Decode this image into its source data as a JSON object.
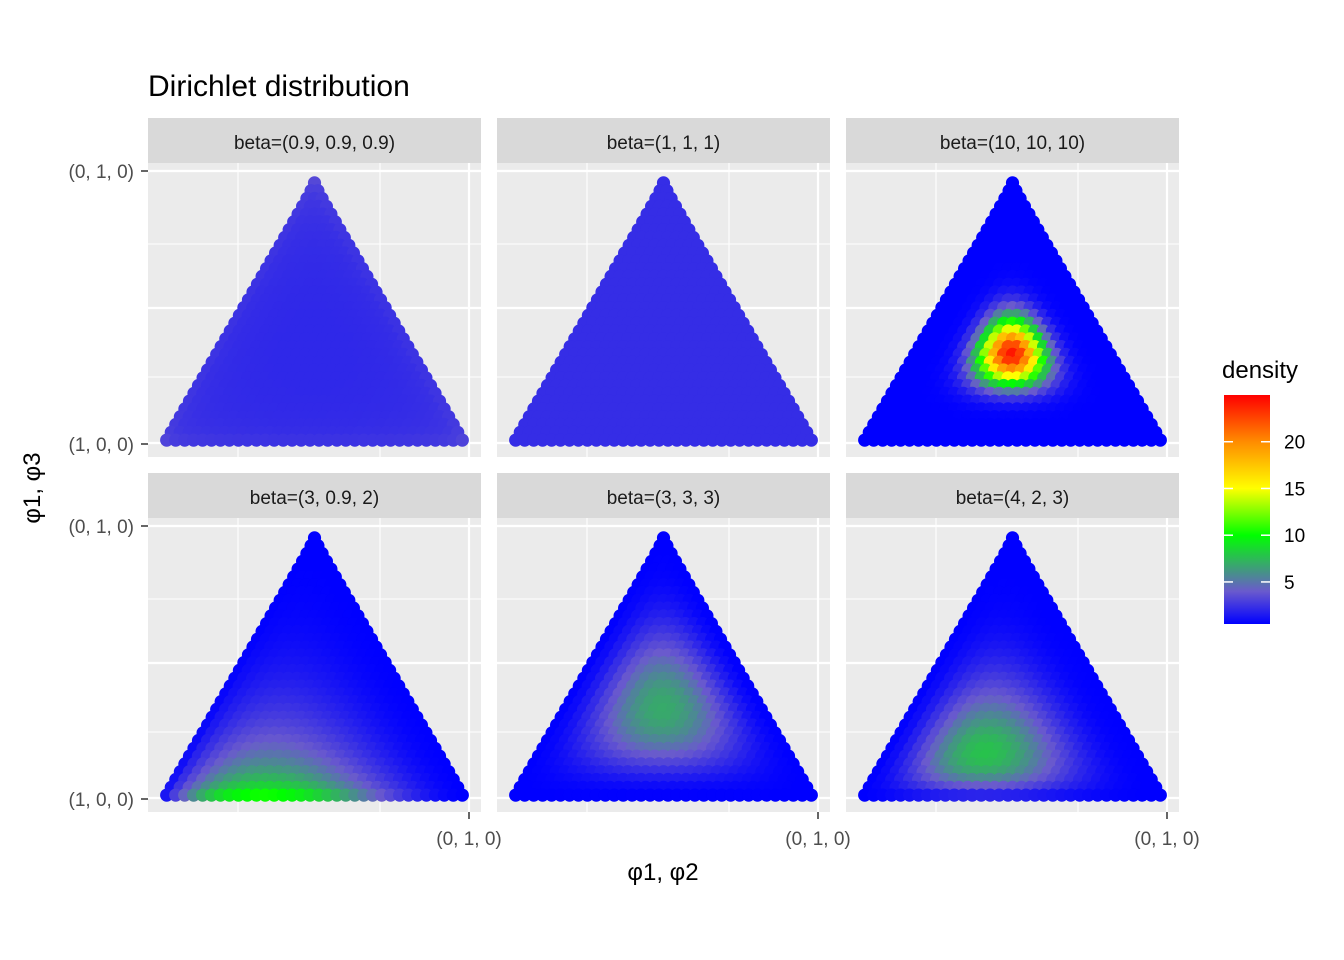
{
  "chart_data": {
    "type": "scatter",
    "title": "Dirichlet distribution",
    "xlabel": "φ1, φ2",
    "ylabel": "φ1, φ3",
    "x_tick_labels": [
      "(0, 1, 0)"
    ],
    "y_tick_labels": [
      "(0, 1, 0)",
      "(1, 0, 0)"
    ],
    "grid": true,
    "facets": [
      {
        "label": "beta=(0.9, 0.9, 0.9)",
        "alpha": [
          0.9,
          0.9,
          0.9
        ]
      },
      {
        "label": "beta=(1, 1, 1)",
        "alpha": [
          1,
          1,
          1
        ]
      },
      {
        "label": "beta=(10, 10, 10)",
        "alpha": [
          10,
          10,
          10
        ]
      },
      {
        "label": "beta=(3, 0.9, 2)",
        "alpha": [
          3,
          0.9,
          2
        ]
      },
      {
        "label": "beta=(3, 3, 3)",
        "alpha": [
          3,
          3,
          3
        ]
      },
      {
        "label": "beta=(4, 2, 3)",
        "alpha": [
          4,
          2,
          3
        ]
      }
    ],
    "legend": {
      "title": "density",
      "position": "right",
      "ticks": [
        5,
        10,
        15,
        20
      ],
      "range": [
        0.5,
        25
      ],
      "colors": [
        "#0000ff",
        "#6a5acd",
        "#00ff00",
        "#ffff00",
        "#ff8c00",
        "#ff0000"
      ],
      "color_stops": [
        0,
        4,
        10,
        15,
        20,
        25
      ]
    }
  }
}
